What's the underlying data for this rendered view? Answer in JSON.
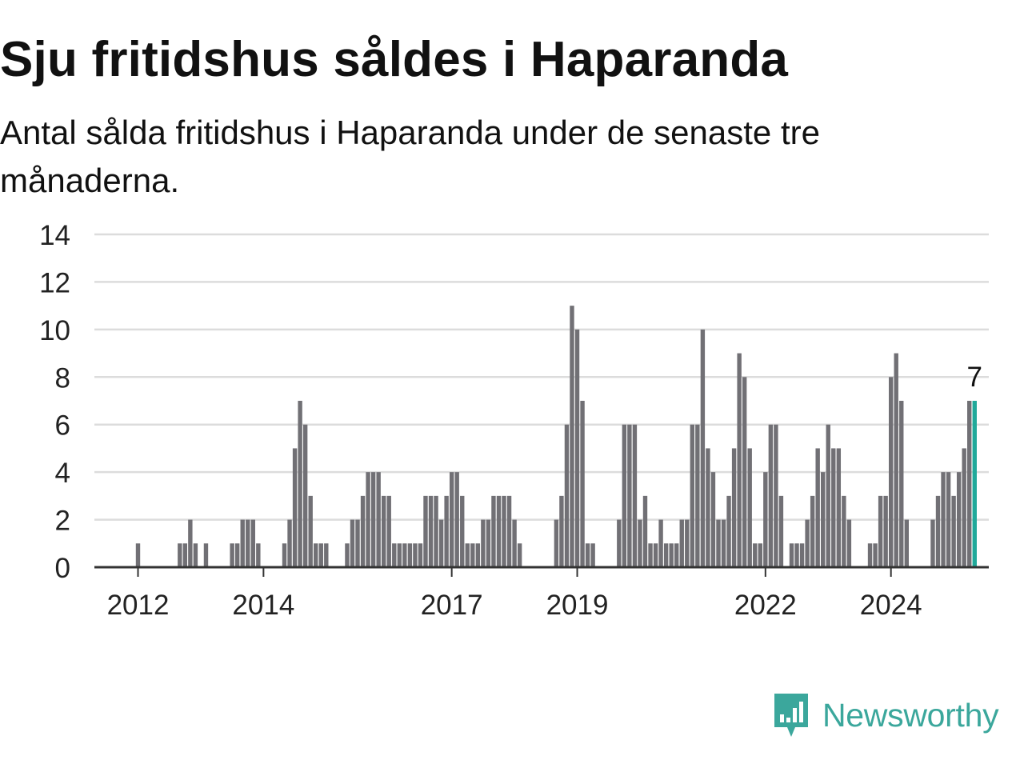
{
  "chart_data": {
    "type": "bar",
    "title": "Sju fritidshus såldes i Haparanda",
    "subtitle": "Antal sålda fritidshus i Haparanda under de senaste tre månaderna.",
    "xlabel": "",
    "ylabel": "",
    "ylim": [
      0,
      14
    ],
    "yticks": [
      "0",
      "2",
      "4",
      "6",
      "8",
      "10",
      "12",
      "14"
    ],
    "xticks": [
      "2012",
      "2014",
      "2017",
      "2019",
      "2022",
      "2024"
    ],
    "grid": true,
    "legend": "none",
    "highlight_label": "7",
    "colors": {
      "bar": "#717075",
      "highlight": "#20a99a",
      "grid": "#dcdcdc",
      "axis": "#333333"
    },
    "series": [
      {
        "values": [
          1,
          0,
          0,
          0,
          0,
          0,
          0,
          0,
          1,
          1,
          2,
          1,
          0,
          1,
          0,
          0,
          0,
          0,
          1,
          1,
          2,
          2,
          2,
          1,
          0,
          0,
          0,
          0,
          1,
          2,
          5,
          7,
          6,
          3,
          1,
          1,
          1,
          0,
          0,
          0,
          1,
          2,
          2,
          3,
          4,
          4,
          4,
          3,
          3,
          1,
          1,
          1,
          1,
          1,
          1,
          3,
          3,
          3,
          2,
          3,
          4,
          4,
          3,
          1,
          1,
          1,
          2,
          2,
          3,
          3,
          3,
          3,
          2,
          1,
          0,
          0,
          0,
          0,
          0,
          0,
          2,
          3,
          6,
          11,
          10,
          7,
          1,
          1,
          0,
          0,
          0,
          0,
          2,
          6,
          6,
          6,
          2,
          3,
          1,
          1,
          2,
          1,
          1,
          1,
          2,
          2,
          6,
          6,
          10,
          5,
          4,
          2,
          2,
          3,
          5,
          9,
          8,
          5,
          1,
          1,
          4,
          6,
          6,
          3,
          0,
          1,
          1,
          1,
          2,
          3,
          5,
          4,
          6,
          5,
          5,
          3,
          2,
          0,
          0,
          0,
          1,
          1,
          3,
          3,
          8,
          9,
          7,
          2,
          0,
          0,
          0,
          0,
          2,
          3,
          4,
          4,
          3,
          4,
          5,
          7,
          7
        ]
      }
    ]
  },
  "brand": {
    "name": "Newsworthy",
    "icon": "newsworthy-chart-icon",
    "color": "#3ba79c"
  }
}
